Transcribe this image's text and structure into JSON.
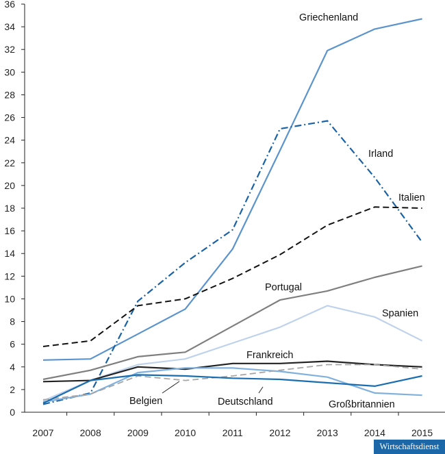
{
  "chart_data": {
    "type": "line",
    "title": "",
    "xlabel": "",
    "ylabel": "",
    "x": [
      "2007",
      "2008",
      "2009",
      "2010",
      "2011",
      "2012",
      "2013",
      "2014",
      "2015"
    ],
    "ylim": [
      0,
      36
    ],
    "yticks": [
      0,
      2,
      4,
      6,
      8,
      10,
      12,
      14,
      16,
      18,
      20,
      22,
      24,
      26,
      28,
      30,
      32,
      34,
      36
    ],
    "grid": false,
    "legend": "labels next to lines",
    "series": [
      {
        "name": "Griechenland",
        "values": [
          4.6,
          4.7,
          6.9,
          9.1,
          14.4,
          23.1,
          31.9,
          33.8,
          34.7
        ],
        "color": "#5b93cc",
        "dash": "solid",
        "width": 2.2
      },
      {
        "name": "Irland",
        "values": [
          0.7,
          1.7,
          9.8,
          13.2,
          16.1,
          25.0,
          25.7,
          20.7,
          15.0
        ],
        "color": "#1b62a4",
        "dash": "dashdot",
        "width": 2.2
      },
      {
        "name": "Italien",
        "values": [
          5.8,
          6.3,
          9.4,
          10.0,
          11.8,
          13.9,
          16.5,
          18.1,
          18.0
        ],
        "color": "#111111",
        "dash": "dashed",
        "width": 2.0
      },
      {
        "name": "Portugal",
        "values": [
          2.9,
          3.7,
          4.9,
          5.3,
          7.6,
          9.9,
          10.7,
          11.9,
          12.9
        ],
        "color": "#7f7f7f",
        "dash": "solid",
        "width": 2.2
      },
      {
        "name": "Spanien",
        "values": [
          1.0,
          2.8,
          4.2,
          4.7,
          6.1,
          7.5,
          9.4,
          8.4,
          6.3
        ],
        "color": "#bfd2ec",
        "dash": "solid",
        "width": 2.2
      },
      {
        "name": "Frankreich",
        "values": [
          2.7,
          2.8,
          4.0,
          3.8,
          4.3,
          4.3,
          4.5,
          4.2,
          4.0
        ],
        "color": "#222222",
        "dash": "solid",
        "width": 2.2
      },
      {
        "name": "Großbritannien",
        "values": [
          0.9,
          1.6,
          3.5,
          3.9,
          3.9,
          3.6,
          3.1,
          1.7,
          1.5
        ],
        "color": "#7fb0de",
        "dash": "solid",
        "width": 2.2
      },
      {
        "name": "Deutschland",
        "values": [
          1.1,
          1.6,
          3.2,
          2.8,
          3.2,
          3.7,
          4.2,
          4.2,
          3.8
        ],
        "color": "#a6a6a6",
        "dash": "dashed",
        "width": 1.8
      },
      {
        "name": "Belgien",
        "values": [
          0.8,
          2.8,
          3.3,
          3.2,
          3.0,
          2.9,
          2.6,
          2.3,
          3.2
        ],
        "color": "#1a6eb0",
        "dash": "solid",
        "width": 2.2
      }
    ],
    "labels": [
      {
        "text": "Griechenland",
        "series": "Griechenland"
      },
      {
        "text": "Irland",
        "series": "Irland"
      },
      {
        "text": "Italien",
        "series": "Italien"
      },
      {
        "text": "Portugal",
        "series": "Portugal"
      },
      {
        "text": "Spanien",
        "series": "Spanien"
      },
      {
        "text": "Frankreich",
        "series": "Frankreich"
      },
      {
        "text": "Belgien",
        "series": "Belgien"
      },
      {
        "text": "Deutschland",
        "series": "Deutschland"
      },
      {
        "text": "Großbritannien",
        "series": "Großbritannien"
      }
    ]
  },
  "source_badge": "Wirtschaftsdienst"
}
